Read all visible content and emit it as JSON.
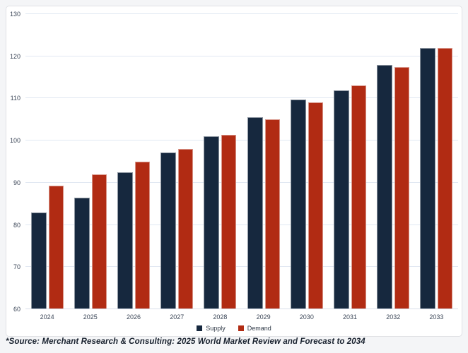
{
  "chart_data": {
    "type": "bar",
    "title": "",
    "xlabel": "",
    "ylabel": "",
    "categories": [
      "2024",
      "2025",
      "2026",
      "2027",
      "2028",
      "2029",
      "2030",
      "2031",
      "2032",
      "2033"
    ],
    "series": [
      {
        "name": "Supply",
        "color": "#16283e",
        "values": [
          83,
          86.5,
          92.5,
          97.2,
          101.1,
          105.5,
          109.7,
          112,
          118,
          122
        ]
      },
      {
        "name": "Demand",
        "color": "#b12b13",
        "values": [
          89.3,
          92,
          95,
          98.1,
          101.4,
          105.1,
          109,
          113.1,
          117.4,
          121.9
        ]
      }
    ],
    "ylim": [
      60,
      130
    ],
    "yticks": [
      60,
      70,
      80,
      90,
      100,
      110,
      120,
      130
    ],
    "grid": true,
    "legend_position": "bottom-center"
  },
  "colors": {
    "page_background": "#f4f5f7",
    "card_background": "#ffffff",
    "card_border": "#e0e1e5",
    "gridline": "#e1e8f2",
    "axis_text": "#3c4758",
    "supply_bar": "#16283e",
    "demand_bar": "#b12b13"
  },
  "source_note": "*Source: Merchant Research & Consulting: 2025 World Market Review and Forecast to 2034"
}
